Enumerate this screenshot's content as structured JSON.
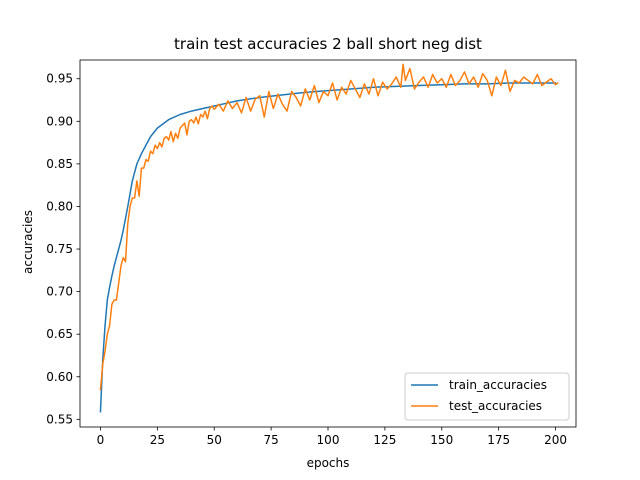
{
  "chart_data": {
    "type": "line",
    "title": "train test accuracies 2 ball short neg dist",
    "xlabel": "epochs",
    "ylabel": "accuracies",
    "xlim": [
      -9,
      209
    ],
    "ylim": [
      0.541,
      0.972
    ],
    "xticks": [
      0,
      25,
      50,
      75,
      100,
      125,
      150,
      175,
      200
    ],
    "yticks": [
      0.55,
      0.6,
      0.65,
      0.7,
      0.75,
      0.8,
      0.85,
      0.9,
      0.95
    ],
    "ytick_labels": [
      "0.55",
      "0.60",
      "0.65",
      "0.70",
      "0.75",
      "0.80",
      "0.85",
      "0.90",
      "0.95"
    ],
    "grid": false,
    "legend_position": "lower right",
    "series": [
      {
        "name": "train_accuracies",
        "color": "#1f77b4",
        "x": [
          0,
          1,
          2,
          3,
          4,
          5,
          6,
          7,
          8,
          9,
          10,
          12,
          14,
          16,
          18,
          20,
          22,
          25,
          30,
          35,
          40,
          45,
          50,
          55,
          60,
          70,
          80,
          90,
          100,
          110,
          120,
          130,
          140,
          150,
          160,
          170,
          180,
          190,
          200
        ],
        "y": [
          0.559,
          0.62,
          0.66,
          0.69,
          0.705,
          0.718,
          0.73,
          0.74,
          0.75,
          0.76,
          0.772,
          0.8,
          0.83,
          0.85,
          0.862,
          0.872,
          0.882,
          0.892,
          0.902,
          0.908,
          0.912,
          0.915,
          0.918,
          0.921,
          0.924,
          0.928,
          0.931,
          0.934,
          0.936,
          0.938,
          0.94,
          0.941,
          0.942,
          0.943,
          0.944,
          0.944,
          0.945,
          0.945,
          0.945
        ]
      },
      {
        "name": "test_accuracies",
        "color": "#ff7f0e",
        "x": [
          0,
          1,
          2,
          3,
          4,
          5,
          6,
          7,
          8,
          9,
          10,
          11,
          12,
          13,
          14,
          15,
          16,
          17,
          18,
          19,
          20,
          21,
          22,
          23,
          24,
          25,
          26,
          27,
          28,
          29,
          30,
          31,
          32,
          33,
          34,
          35,
          36,
          37,
          38,
          39,
          40,
          41,
          42,
          43,
          44,
          45,
          46,
          47,
          48,
          49,
          50,
          52,
          54,
          56,
          58,
          60,
          62,
          64,
          66,
          68,
          70,
          72,
          74,
          76,
          78,
          80,
          82,
          84,
          86,
          88,
          90,
          92,
          94,
          96,
          98,
          100,
          102,
          104,
          106,
          108,
          110,
          112,
          114,
          116,
          118,
          120,
          122,
          124,
          126,
          128,
          130,
          132,
          133,
          134,
          136,
          138,
          140,
          142,
          144,
          146,
          148,
          150,
          152,
          154,
          156,
          158,
          160,
          162,
          164,
          166,
          168,
          170,
          172,
          174,
          176,
          178,
          180,
          182,
          184,
          186,
          188,
          190,
          192,
          194,
          196,
          198,
          200,
          201
        ],
        "y": [
          0.585,
          0.615,
          0.63,
          0.65,
          0.66,
          0.685,
          0.69,
          0.69,
          0.71,
          0.73,
          0.74,
          0.735,
          0.78,
          0.8,
          0.81,
          0.81,
          0.83,
          0.812,
          0.845,
          0.845,
          0.855,
          0.853,
          0.865,
          0.862,
          0.872,
          0.868,
          0.875,
          0.87,
          0.88,
          0.882,
          0.878,
          0.888,
          0.876,
          0.886,
          0.88,
          0.892,
          0.895,
          0.898,
          0.884,
          0.9,
          0.902,
          0.898,
          0.905,
          0.897,
          0.908,
          0.905,
          0.912,
          0.903,
          0.915,
          0.918,
          0.914,
          0.92,
          0.912,
          0.924,
          0.915,
          0.922,
          0.91,
          0.928,
          0.912,
          0.926,
          0.93,
          0.905,
          0.935,
          0.915,
          0.932,
          0.92,
          0.912,
          0.935,
          0.928,
          0.918,
          0.938,
          0.925,
          0.942,
          0.922,
          0.935,
          0.93,
          0.945,
          0.925,
          0.94,
          0.932,
          0.948,
          0.938,
          0.928,
          0.944,
          0.932,
          0.95,
          0.93,
          0.946,
          0.938,
          0.944,
          0.952,
          0.94,
          0.967,
          0.948,
          0.962,
          0.938,
          0.946,
          0.952,
          0.94,
          0.955,
          0.945,
          0.95,
          0.94,
          0.955,
          0.942,
          0.948,
          0.958,
          0.944,
          0.952,
          0.94,
          0.956,
          0.948,
          0.93,
          0.952,
          0.942,
          0.96,
          0.935,
          0.948,
          0.945,
          0.952,
          0.948,
          0.944,
          0.955,
          0.942,
          0.946,
          0.95,
          0.943,
          0.945
        ]
      }
    ]
  }
}
